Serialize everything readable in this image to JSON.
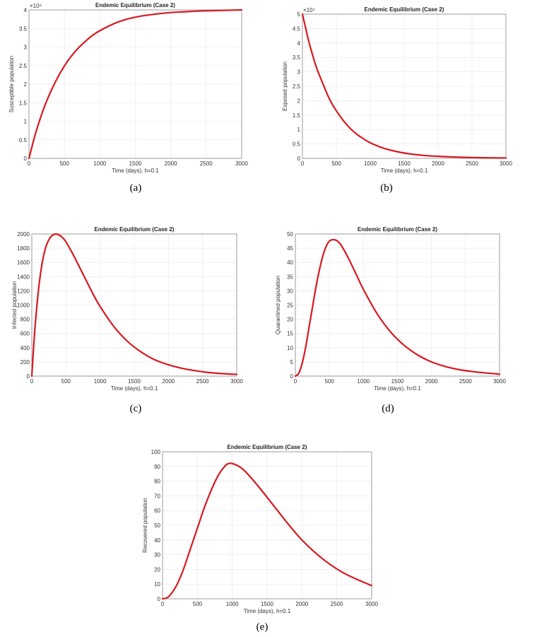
{
  "colors": {
    "line": "#d71920",
    "background": "#ffffff"
  },
  "chart_data": [
    {
      "type": "line",
      "caption": "(a)",
      "title": "Endemic Equilibrium (Case 2)",
      "xlabel": "Time (days), h=0.1",
      "ylabel": "Susceptible population",
      "y_exponent": "×10⁸",
      "xlim": [
        0,
        3000
      ],
      "ylim": [
        0,
        4
      ],
      "xticks": [
        0,
        500,
        1000,
        1500,
        2000,
        2500,
        3000
      ],
      "yticks": [
        0,
        0.5,
        1,
        1.5,
        2,
        2.5,
        3,
        3.5,
        4
      ],
      "grid": true,
      "series": [
        {
          "x": [
            0,
            50,
            100,
            200,
            300,
            400,
            500,
            600,
            700,
            800,
            900,
            1000,
            1200,
            1400,
            1600,
            1800,
            2000,
            2200,
            2400,
            2600,
            2800,
            3000
          ],
          "y": [
            0,
            0.37,
            0.72,
            1.3,
            1.77,
            2.16,
            2.49,
            2.76,
            2.98,
            3.16,
            3.32,
            3.44,
            3.63,
            3.76,
            3.84,
            3.89,
            3.93,
            3.95,
            3.97,
            3.98,
            3.99,
            4.0
          ]
        }
      ]
    },
    {
      "type": "line",
      "caption": "(b)",
      "title": "Endemic Equilibrium (Case 2)",
      "xlabel": "Time (days), h=0.1",
      "ylabel": "Exposed population",
      "y_exponent": "×10⁴",
      "xlim": [
        0,
        3000
      ],
      "ylim": [
        0,
        5
      ],
      "xticks": [
        0,
        500,
        1000,
        1500,
        2000,
        2500,
        3000
      ],
      "yticks": [
        0,
        0.5,
        1,
        1.5,
        2,
        2.5,
        3,
        3.5,
        4,
        4.5,
        5
      ],
      "grid": true,
      "series": [
        {
          "x": [
            0,
            50,
            100,
            200,
            300,
            400,
            500,
            600,
            700,
            800,
            900,
            1000,
            1200,
            1400,
            1600,
            1800,
            2000,
            2200,
            2400,
            2600,
            2800,
            3000
          ],
          "y": [
            5.0,
            4.5,
            4.0,
            3.2,
            2.6,
            2.05,
            1.65,
            1.32,
            1.05,
            0.84,
            0.68,
            0.54,
            0.35,
            0.23,
            0.15,
            0.1,
            0.07,
            0.05,
            0.035,
            0.025,
            0.018,
            0.012
          ]
        }
      ]
    },
    {
      "type": "line",
      "caption": "(c)",
      "title": "Endemic Equilibrium (Case 2)",
      "xlabel": "Time (days), h=0.1",
      "ylabel": "Infected population",
      "y_exponent": "",
      "xlim": [
        0,
        3000
      ],
      "ylim": [
        0,
        2000
      ],
      "xticks": [
        0,
        500,
        1000,
        1500,
        2000,
        2500,
        3000
      ],
      "yticks": [
        0,
        200,
        400,
        600,
        800,
        1000,
        1200,
        1400,
        1600,
        1800,
        2000
      ],
      "grid": true,
      "series": [
        {
          "x": [
            0,
            25,
            50,
            100,
            150,
            200,
            250,
            300,
            350,
            400,
            450,
            500,
            600,
            700,
            800,
            900,
            1000,
            1200,
            1400,
            1600,
            1800,
            2000,
            2200,
            2400,
            2600,
            2800,
            3000
          ],
          "y": [
            0,
            380,
            720,
            1230,
            1580,
            1800,
            1920,
            1980,
            2000,
            1985,
            1950,
            1890,
            1720,
            1530,
            1340,
            1150,
            980,
            700,
            490,
            340,
            230,
            160,
            110,
            75,
            50,
            35,
            25
          ]
        }
      ]
    },
    {
      "type": "line",
      "caption": "(d)",
      "title": "Endemic Equilibrium (Case 2)",
      "xlabel": "Time (days), h=0.1",
      "ylabel": "Quarantined population",
      "y_exponent": "",
      "xlim": [
        0,
        3000
      ],
      "ylim": [
        0,
        50
      ],
      "xticks": [
        0,
        500,
        1000,
        1500,
        2000,
        2500,
        3000
      ],
      "yticks": [
        0,
        5,
        10,
        15,
        20,
        25,
        30,
        35,
        40,
        45,
        50
      ],
      "grid": true,
      "series": [
        {
          "x": [
            0,
            50,
            100,
            150,
            200,
            250,
            300,
            350,
            400,
            450,
            500,
            550,
            600,
            650,
            700,
            800,
            900,
            1000,
            1200,
            1400,
            1600,
            1800,
            2000,
            2200,
            2400,
            2600,
            2800,
            3000
          ],
          "y": [
            0,
            1,
            4.5,
            10,
            17,
            24,
            31,
            37,
            42,
            45.5,
            47.5,
            48,
            47.8,
            46.8,
            45,
            40.5,
            35.5,
            30.5,
            22,
            15.5,
            10.8,
            7.4,
            5.0,
            3.4,
            2.3,
            1.6,
            1.1,
            0.7
          ]
        }
      ]
    },
    {
      "type": "line",
      "caption": "(e)",
      "title": "Endemic Equilibrium (Case 2)",
      "xlabel": "Time (days), h=0.1",
      "ylabel": "Recovered population",
      "y_exponent": "",
      "xlim": [
        0,
        3000
      ],
      "ylim": [
        0,
        100
      ],
      "xticks": [
        0,
        500,
        1000,
        1500,
        2000,
        2500,
        3000
      ],
      "yticks": [
        0,
        10,
        20,
        30,
        40,
        50,
        60,
        70,
        80,
        90,
        100
      ],
      "grid": true,
      "series": [
        {
          "x": [
            0,
            50,
            100,
            200,
            300,
            400,
            500,
            600,
            700,
            800,
            900,
            950,
            1000,
            1100,
            1200,
            1400,
            1600,
            1800,
            2000,
            2200,
            2400,
            2600,
            2800,
            3000
          ],
          "y": [
            0,
            0.5,
            2,
            9,
            20,
            34,
            48,
            62,
            74,
            84,
            90.5,
            92,
            92,
            90,
            86,
            75,
            63,
            51,
            40,
            31,
            23.5,
            17.5,
            13,
            9
          ]
        }
      ]
    }
  ]
}
